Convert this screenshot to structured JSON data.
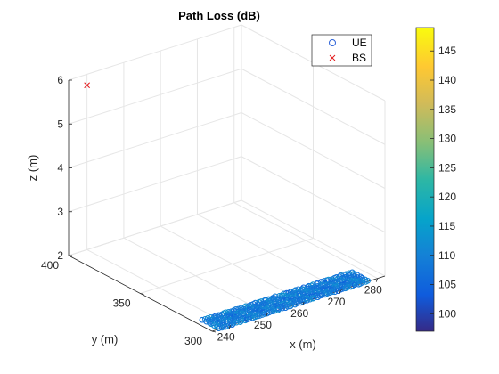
{
  "chart_data": {
    "type": "scatter",
    "title": "Path Loss (dB)",
    "xlabel": "x (m)",
    "ylabel": "y (m)",
    "zlabel": "z (m)",
    "xlim": [
      235,
      282
    ],
    "ylim": [
      300,
      400
    ],
    "zlim": [
      2,
      6
    ],
    "xticks": [
      "240",
      "250",
      "260",
      "270",
      "280"
    ],
    "yticks": [
      "300",
      "350",
      "400"
    ],
    "zticks": [
      "2",
      "3",
      "4",
      "5",
      "6"
    ],
    "grid": true,
    "legend_position": "top-right",
    "colorbar": {
      "ticks": [
        "100",
        "105",
        "110",
        "115",
        "120",
        "125",
        "130",
        "135",
        "140",
        "145"
      ],
      "range": [
        97,
        149
      ],
      "colormap": "parula"
    },
    "series": [
      {
        "name": "UE",
        "marker": "circle",
        "color_by": "path loss (dB)",
        "area": {
          "x": [
            237,
            278
          ],
          "y": [
            300,
            313
          ],
          "z": 2
        },
        "pl_range": [
          104,
          114
        ]
      },
      {
        "name": "BS",
        "marker": "x",
        "color": "#e31a1c",
        "points": [
          {
            "x": 240,
            "y": 400,
            "z": 5.75
          }
        ]
      }
    ]
  }
}
